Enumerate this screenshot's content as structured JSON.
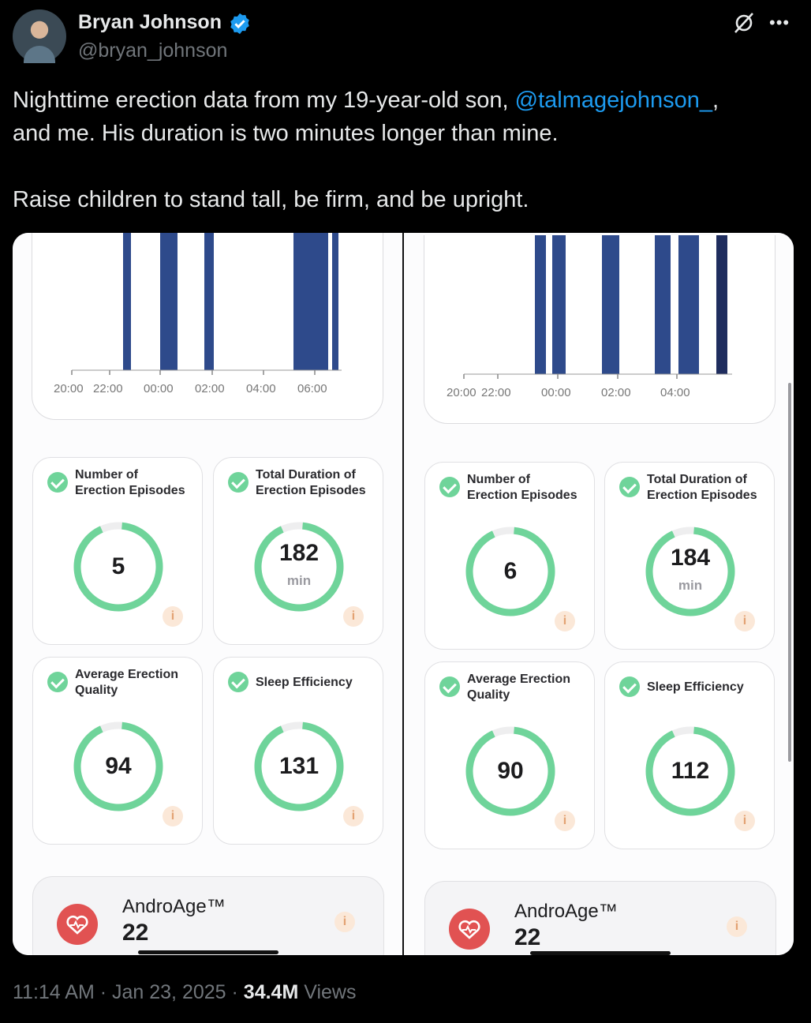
{
  "author": {
    "name": "Bryan Johnson",
    "handle": "@bryan_johnson"
  },
  "tweet": {
    "line1_before": "Nighttime erection data from my 19-year-old son, ",
    "mention": "@talmagejohnson_",
    "line1_after": ",",
    "line2": "and me. His duration is two minutes longer than mine.",
    "line3": "Raise children to stand tall, be firm, and be upright."
  },
  "screens": [
    {
      "chart_ticks": [
        "20:00",
        "22:00",
        "00:00",
        "02:00",
        "04:00",
        "06:00"
      ],
      "tiles": [
        {
          "label": [
            "Number of",
            "Erection Episodes"
          ],
          "value": "5",
          "unit": ""
        },
        {
          "label": [
            "Total Duration of",
            "Erection Episodes"
          ],
          "value": "182",
          "unit": "min"
        },
        {
          "label": [
            "Average Erection",
            "Quality"
          ],
          "value": "94",
          "unit": ""
        },
        {
          "label": [
            "Sleep Efficiency"
          ],
          "value": "131",
          "unit": ""
        }
      ],
      "androage": {
        "label": "AndroAge™",
        "value": "22"
      }
    },
    {
      "chart_ticks": [
        "20:00",
        "22:00",
        "00:00",
        "02:00",
        "04:00"
      ],
      "tiles": [
        {
          "label": [
            "Number of",
            "Erection Episodes"
          ],
          "value": "6",
          "unit": ""
        },
        {
          "label": [
            "Total Duration of",
            "Erection Episodes"
          ],
          "value": "184",
          "unit": "min"
        },
        {
          "label": [
            "Average Erection",
            "Quality"
          ],
          "value": "90",
          "unit": ""
        },
        {
          "label": [
            "Sleep Efficiency"
          ],
          "value": "112",
          "unit": ""
        }
      ],
      "androage": {
        "label": "AndroAge™",
        "value": "22"
      }
    }
  ],
  "info_glyph": "i",
  "footer": {
    "time": "11:14 AM",
    "sep1": " · ",
    "date": "Jan 23, 2025",
    "sep2": " · ",
    "views_count": "34.4M",
    "views_label": " Views"
  },
  "colors": {
    "bar": "#2e4a8b",
    "bar_dark": "#1f2d5e",
    "ring": "#6fd49a",
    "link": "#1d9bf0"
  }
}
